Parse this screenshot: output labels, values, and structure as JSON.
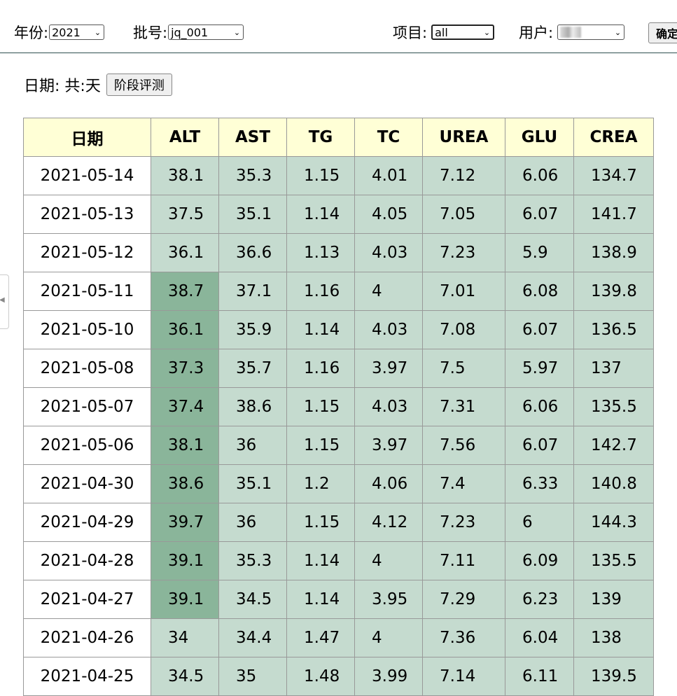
{
  "filters": {
    "year_label": "年份:",
    "year_value": "2021",
    "batch_label": "批号:",
    "batch_value": "jq_001",
    "item_label": "项目:",
    "item_value": "all",
    "user_label": "用户:",
    "confirm_label": "确定"
  },
  "date_line": {
    "text": "日期: 共:天",
    "eval_button": "阶段评测"
  },
  "table": {
    "headers": [
      "日期",
      "ALT",
      "AST",
      "TG",
      "TC",
      "UREA",
      "GLU",
      "CREA"
    ],
    "rows": [
      {
        "date": "2021-05-14",
        "ALT": "38.1",
        "AST": "35.3",
        "TG": "1.15",
        "TC": "4.01",
        "UREA": "7.12",
        "GLU": "6.06",
        "CREA": "134.7",
        "alt_high": false
      },
      {
        "date": "2021-05-13",
        "ALT": "37.5",
        "AST": "35.1",
        "TG": "1.14",
        "TC": "4.05",
        "UREA": "7.05",
        "GLU": "6.07",
        "CREA": "141.7",
        "alt_high": false
      },
      {
        "date": "2021-05-12",
        "ALT": "36.1",
        "AST": "36.6",
        "TG": "1.13",
        "TC": "4.03",
        "UREA": "7.23",
        "GLU": "5.9",
        "CREA": "138.9",
        "alt_high": false
      },
      {
        "date": "2021-05-11",
        "ALT": "38.7",
        "AST": "37.1",
        "TG": "1.16",
        "TC": "4",
        "UREA": "7.01",
        "GLU": "6.08",
        "CREA": "139.8",
        "alt_high": true
      },
      {
        "date": "2021-05-10",
        "ALT": "36.1",
        "AST": "35.9",
        "TG": "1.14",
        "TC": "4.03",
        "UREA": "7.08",
        "GLU": "6.07",
        "CREA": "136.5",
        "alt_high": true
      },
      {
        "date": "2021-05-08",
        "ALT": "37.3",
        "AST": "35.7",
        "TG": "1.16",
        "TC": "3.97",
        "UREA": "7.5",
        "GLU": "5.97",
        "CREA": "137",
        "alt_high": true
      },
      {
        "date": "2021-05-07",
        "ALT": "37.4",
        "AST": "38.6",
        "TG": "1.15",
        "TC": "4.03",
        "UREA": "7.31",
        "GLU": "6.06",
        "CREA": "135.5",
        "alt_high": true
      },
      {
        "date": "2021-05-06",
        "ALT": "38.1",
        "AST": "36",
        "TG": "1.15",
        "TC": "3.97",
        "UREA": "7.56",
        "GLU": "6.07",
        "CREA": "142.7",
        "alt_high": true
      },
      {
        "date": "2021-04-30",
        "ALT": "38.6",
        "AST": "35.1",
        "TG": "1.2",
        "TC": "4.06",
        "UREA": "7.4",
        "GLU": "6.33",
        "CREA": "140.8",
        "alt_high": true
      },
      {
        "date": "2021-04-29",
        "ALT": "39.7",
        "AST": "36",
        "TG": "1.15",
        "TC": "4.12",
        "UREA": "7.23",
        "GLU": "6",
        "CREA": "144.3",
        "alt_high": true
      },
      {
        "date": "2021-04-28",
        "ALT": "39.1",
        "AST": "35.3",
        "TG": "1.14",
        "TC": "4",
        "UREA": "7.11",
        "GLU": "6.09",
        "CREA": "135.5",
        "alt_high": true
      },
      {
        "date": "2021-04-27",
        "ALT": "39.1",
        "AST": "34.5",
        "TG": "1.14",
        "TC": "3.95",
        "UREA": "7.29",
        "GLU": "6.23",
        "CREA": "139",
        "alt_high": true
      },
      {
        "date": "2021-04-26",
        "ALT": "34",
        "AST": "34.4",
        "TG": "1.47",
        "TC": "4",
        "UREA": "7.36",
        "GLU": "6.04",
        "CREA": "138",
        "alt_high": false
      },
      {
        "date": "2021-04-25",
        "ALT": "34.5",
        "AST": "35",
        "TG": "1.48",
        "TC": "3.99",
        "UREA": "7.14",
        "GLU": "6.11",
        "CREA": "139.5",
        "alt_high": false
      }
    ]
  },
  "colors": {
    "header_bg": "#ffffd6",
    "cell_bg": "#c5dbcf",
    "highlight_bg": "#8ab59a"
  }
}
